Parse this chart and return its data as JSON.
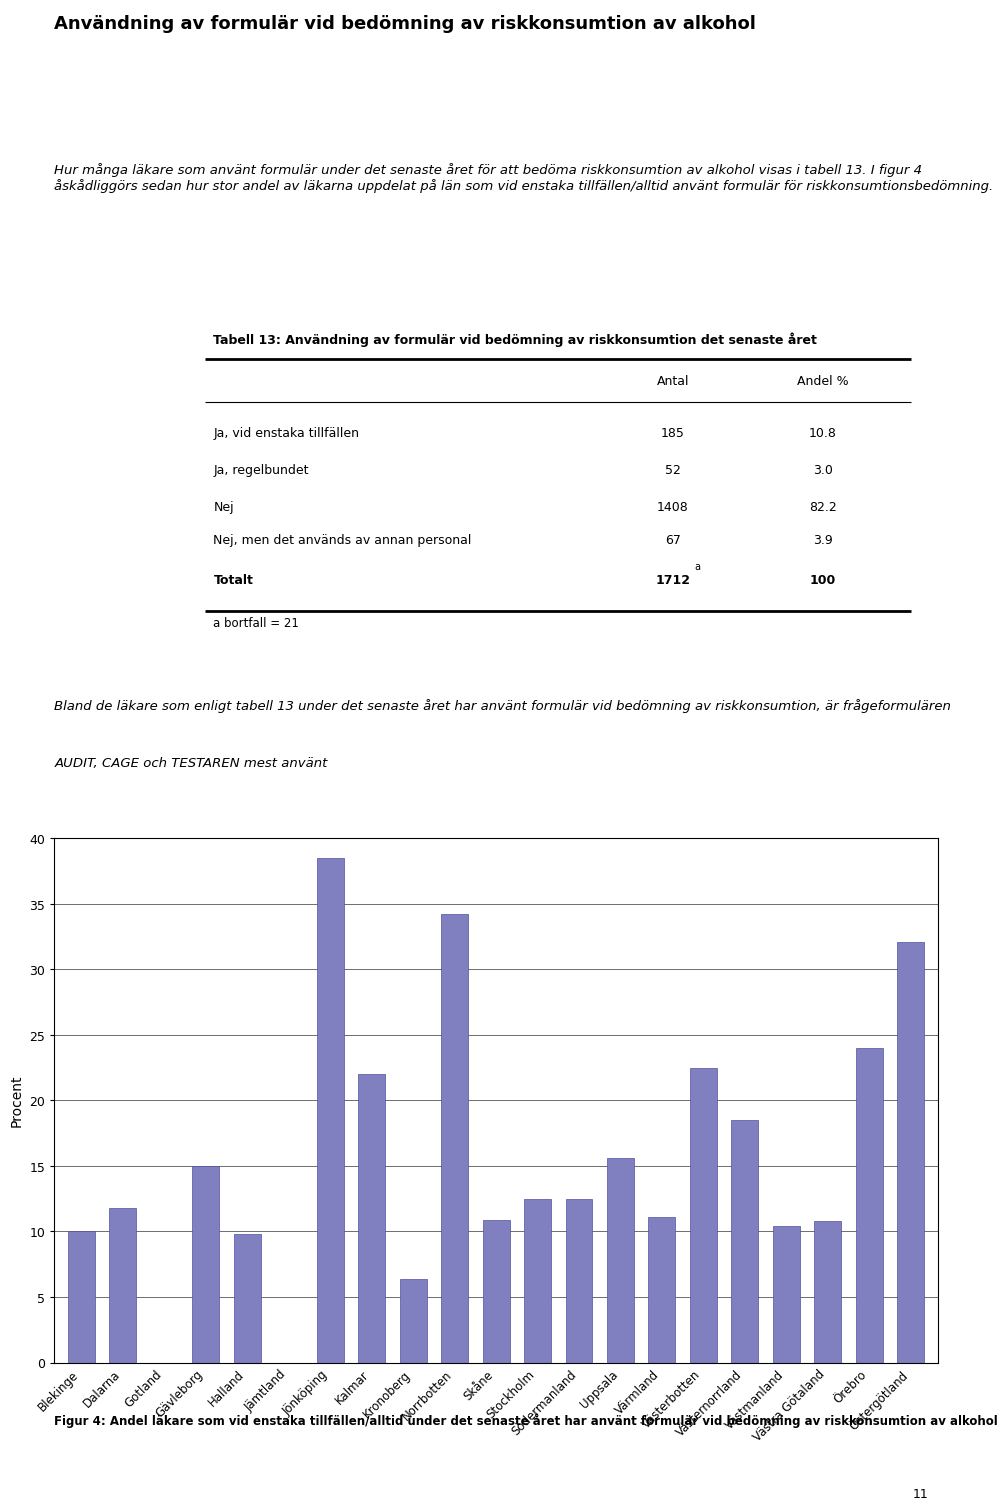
{
  "page_title": "Användning av formulär vid bedömning av riskkonsumtion av alkohol",
  "intro_text": "Hur många läkare som använt formulär under det senaste året för att bedöma riskkonsumtion av alkohol visas i tabell 13. I figur 4 åskådliggörs sedan hur stor andel av läkarna uppdelat på län som vid enstaka tillfällen/alltid använt formulär för riskkonsumtionsbedömning.",
  "table_title": "Tabell 13: Användning av formulär vid bedömning av riskkonsumtion det senaste året",
  "table_col2": "Antal",
  "table_col3": "Andel %",
  "table_rows": [
    {
      "label": "Ja, vid enstaka tillfällen",
      "antal": "185",
      "andel": "10.8"
    },
    {
      "label": "Ja, regelbundet",
      "antal": "52",
      "andel": "3.0"
    },
    {
      "label": "Nej",
      "antal": "1408",
      "andel": "82.2"
    },
    {
      "label": "Nej, men det används av annan personal",
      "antal": "67",
      "andel": "3.9"
    },
    {
      "label": "Totalt",
      "antal": "1712",
      "andel": "100",
      "superscript": "a"
    }
  ],
  "footnote": "a bortfall = 21",
  "mid_text_line1": "Bland de läkare som enligt tabell 13 under det senaste året har använt formulär vid bedömning av riskkonsumtion, är frågeformulären",
  "mid_text_line2": "AUDIT, CAGE och TESTAREN mest använt",
  "chart_ylabel": "Procent",
  "chart_yticks": [
    0,
    5,
    10,
    15,
    20,
    25,
    30,
    35,
    40
  ],
  "bar_color": "#8080c0",
  "bar_edge_color": "#5050a0",
  "categories": [
    "Blekinge",
    "Dalarna",
    "Gotland",
    "Gävleborg",
    "Halland",
    "Jämtland",
    "Jönköping",
    "Kalmar",
    "Kronoberg",
    "Norrbotten",
    "Skåne",
    "Stockholm",
    "Södermanland",
    "Uppsala",
    "Värmland",
    "Västerbotten",
    "Västernorrland",
    "Västmanland",
    "Västra Götaland",
    "Örebro",
    "Östergötland"
  ],
  "values": [
    10.0,
    11.8,
    0.0,
    15.0,
    9.8,
    0.0,
    38.5,
    22.0,
    6.4,
    34.2,
    10.9,
    12.5,
    12.5,
    15.6,
    11.1,
    22.5,
    18.5,
    10.4,
    10.8,
    24.0,
    32.1
  ],
  "fig_caption": "Figur 4: Andel läkare som vid enstaka tillfällen/alltid under det senaste året har använt formulär vid bedömning av riskkonsumtion av alkohol",
  "page_number": "11",
  "background_color": "#ffffff"
}
